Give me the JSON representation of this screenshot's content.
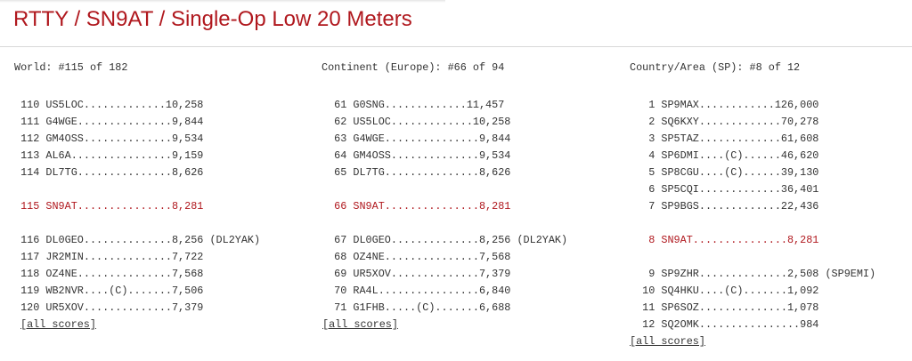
{
  "title": "RTTY / SN9AT / Single-Op Low 20 Meters",
  "accent_color": "#b0181e",
  "columns": [
    {
      "heading": "World: #115 of 182",
      "lines": [
        {
          "text": " 110 US5LOC.............10,258"
        },
        {
          "text": " 111 G4WGE...............9,844"
        },
        {
          "text": " 112 GM4OSS..............9,534"
        },
        {
          "text": " 113 AL6A................9,159"
        },
        {
          "text": " 114 DL7TG...............8,626"
        },
        {
          "text": ""
        },
        {
          "text": " 115 SN9AT...............8,281",
          "me": true
        },
        {
          "text": ""
        },
        {
          "text": " 116 DL0GEO..............8,256 (DL2YAK)"
        },
        {
          "text": " 117 JR2MIN..............7,722"
        },
        {
          "text": " 118 OZ4NE...............7,568"
        },
        {
          "text": " 119 WB2NVR....(C).......7,506"
        },
        {
          "text": " 120 UR5XOV..............7,379"
        }
      ],
      "all_scores": "[all scores]"
    },
    {
      "heading": "Continent (Europe): #66 of 94",
      "lines": [
        {
          "text": "  61 G0SNG.............11,457"
        },
        {
          "text": "  62 US5LOC.............10,258"
        },
        {
          "text": "  63 G4WGE...............9,844"
        },
        {
          "text": "  64 GM4OSS..............9,534"
        },
        {
          "text": "  65 DL7TG...............8,626"
        },
        {
          "text": ""
        },
        {
          "text": "  66 SN9AT...............8,281",
          "me": true
        },
        {
          "text": ""
        },
        {
          "text": "  67 DL0GEO..............8,256 (DL2YAK)"
        },
        {
          "text": "  68 OZ4NE...............7,568"
        },
        {
          "text": "  69 UR5XOV..............7,379"
        },
        {
          "text": "  70 RA4L................6,840"
        },
        {
          "text": "  71 G1FHB.....(C).......6,688"
        }
      ],
      "all_scores": "[all scores]"
    },
    {
      "heading": "Country/Area (SP): #8 of 12",
      "lines": [
        {
          "text": "   1 SP9MAX............126,000"
        },
        {
          "text": "   2 SQ6KXY.............70,278"
        },
        {
          "text": "   3 SP5TAZ.............61,608"
        },
        {
          "text": "   4 SP6DMI....(C)......46,620"
        },
        {
          "text": "   5 SP8CGU....(C)......39,130"
        },
        {
          "text": "   6 SP5CQI.............36,401"
        },
        {
          "text": "   7 SP9BGS.............22,436"
        },
        {
          "text": ""
        },
        {
          "text": "   8 SN9AT...............8,281",
          "me": true
        },
        {
          "text": ""
        },
        {
          "text": "   9 SP9ZHR..............2,508 (SP9EMI)"
        },
        {
          "text": "  10 SQ4HKU....(C).......1,092"
        },
        {
          "text": "  11 SP6SOZ..............1,078"
        },
        {
          "text": "  12 SQ2OMK................984"
        }
      ],
      "all_scores": "[all scores]"
    }
  ]
}
